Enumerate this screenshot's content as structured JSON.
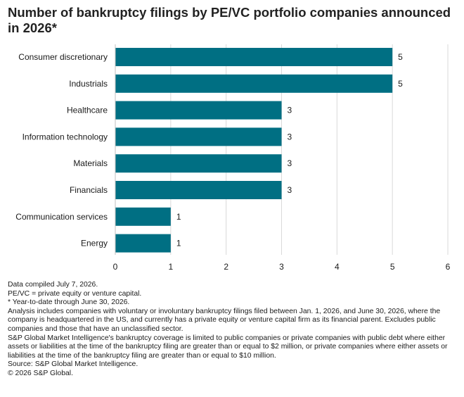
{
  "chart_data": {
    "type": "bar",
    "orientation": "horizontal",
    "title": "Number of bankruptcy filings by PE/VC portfolio companies announced in 2026*",
    "categories": [
      "Consumer discretionary",
      "Industrials",
      "Healthcare",
      "Information technology",
      "Materials",
      "Financials",
      "Communication services",
      "Energy"
    ],
    "values": [
      5,
      5,
      3,
      3,
      3,
      3,
      1,
      1
    ],
    "xlim": [
      0,
      6
    ],
    "xticks": [
      "0",
      "1",
      "2",
      "3",
      "4",
      "5",
      "6"
    ],
    "grid": "vertical",
    "bar_color": "#006f83",
    "grid_color": "#d9d9d9",
    "data_labels": true
  },
  "notes": [
    "Data compiled July 7, 2026.",
    "PE/VC = private equity or venture capital.",
    "* Year-to-date through June 30, 2026.",
    "Analysis includes companies with voluntary or involuntary bankruptcy filings filed between Jan. 1, 2026, and June 30, 2026, where the company is headquartered in the US, and currently has a private equity or venture capital firm as its financial parent. Excludes public companies and those that have an unclassified sector.",
    "S&P Global Market Intelligence's bankruptcy coverage is limited to public companies or private companies with public debt where either assets or liabilities at the time of the bankruptcy filing are greater than or equal to $2 million, or private companies where either assets or liabilities at the time of the bankruptcy filing are greater than or equal to $10 million.",
    "Source: S&P Global Market Intelligence.",
    "© 2026 S&P Global."
  ]
}
